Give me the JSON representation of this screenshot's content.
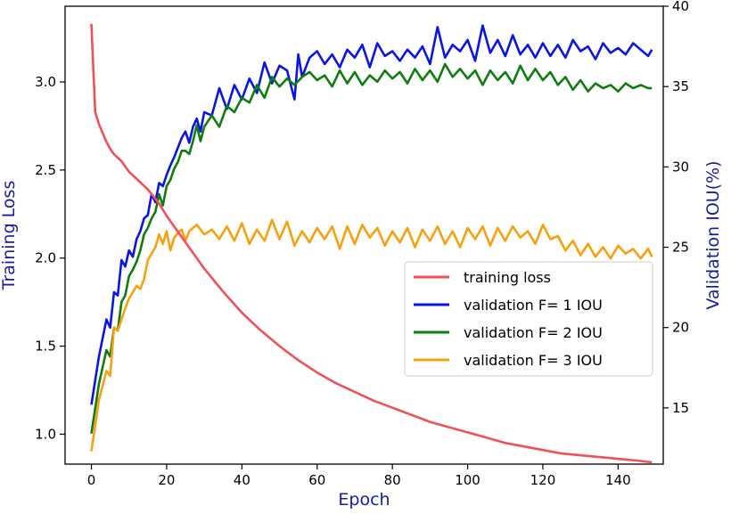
{
  "chart_data": {
    "type": "line",
    "title": "",
    "xlabel": "Epoch",
    "ylabel_left": "Training Loss",
    "ylabel_right": "Validation IOU(%)",
    "xlim": [
      -7,
      152
    ],
    "ylim_left": [
      0.83,
      3.43
    ],
    "ylim_right": [
      11.5,
      40
    ],
    "x_ticks": [
      0,
      20,
      40,
      60,
      80,
      100,
      120,
      140
    ],
    "y_left_ticks": [
      1.0,
      1.5,
      2.0,
      2.5,
      3.0
    ],
    "y_left_tick_labels": [
      "1.0",
      "1.5",
      "2.0",
      "2.5",
      "3.0"
    ],
    "y_right_ticks": [
      15,
      20,
      25,
      30,
      35,
      40
    ],
    "grid": false,
    "legend_position": "center-right",
    "axis_label_color": "#1a1aa6",
    "series": [
      {
        "name": "training loss",
        "axis": "left",
        "color": "#f0505a",
        "x": [
          0,
          1,
          2,
          3,
          4,
          5,
          6,
          8,
          10,
          12,
          15,
          18,
          20,
          25,
          30,
          35,
          40,
          45,
          50,
          55,
          60,
          65,
          70,
          75,
          80,
          85,
          90,
          95,
          100,
          105,
          110,
          115,
          120,
          125,
          130,
          135,
          140,
          145,
          149
        ],
        "values": [
          3.33,
          2.83,
          2.76,
          2.71,
          2.66,
          2.62,
          2.59,
          2.55,
          2.49,
          2.45,
          2.39,
          2.31,
          2.24,
          2.09,
          1.94,
          1.81,
          1.69,
          1.59,
          1.5,
          1.42,
          1.35,
          1.29,
          1.24,
          1.19,
          1.15,
          1.11,
          1.07,
          1.04,
          1.01,
          0.98,
          0.95,
          0.93,
          0.91,
          0.89,
          0.88,
          0.87,
          0.86,
          0.85,
          0.84
        ]
      },
      {
        "name": "validation F= 1 IOU",
        "axis": "right",
        "color": "#0a14e6",
        "x": [
          0,
          2,
          4,
          5,
          6,
          7,
          8,
          9,
          10,
          11,
          12,
          13,
          14,
          15,
          16,
          17,
          18,
          19,
          20,
          21,
          22,
          23,
          24,
          25,
          26,
          27,
          28,
          29,
          30,
          32,
          34,
          36,
          38,
          40,
          42,
          44,
          46,
          48,
          50,
          52,
          54,
          55,
          56,
          58,
          60,
          62,
          64,
          66,
          68,
          70,
          72,
          74,
          76,
          78,
          80,
          82,
          84,
          86,
          88,
          90,
          92,
          94,
          96,
          98,
          100,
          102,
          104,
          106,
          108,
          110,
          112,
          114,
          116,
          118,
          120,
          122,
          124,
          126,
          128,
          130,
          132,
          134,
          136,
          138,
          140,
          142,
          144,
          146,
          148,
          149
        ],
        "values": [
          15.2,
          18.2,
          20.5,
          20.0,
          22.2,
          22.0,
          24.2,
          23.8,
          24.8,
          24.4,
          25.5,
          26.0,
          26.8,
          27.0,
          28.3,
          27.8,
          29.0,
          28.8,
          29.5,
          30.1,
          30.6,
          31.2,
          31.8,
          32.2,
          31.5,
          32.5,
          33.0,
          32.2,
          33.4,
          33.2,
          34.9,
          33.6,
          35.1,
          34.2,
          35.5,
          34.6,
          36.5,
          35.2,
          36.3,
          36.0,
          34.2,
          37.0,
          35.6,
          36.8,
          37.2,
          36.4,
          37.0,
          36.2,
          37.3,
          36.8,
          37.6,
          36.2,
          37.7,
          36.9,
          37.2,
          36.6,
          37.3,
          36.8,
          37.5,
          36.4,
          38.7,
          36.8,
          37.6,
          37.2,
          37.9,
          36.6,
          38.8,
          37.1,
          37.9,
          36.9,
          38.2,
          37.0,
          37.6,
          36.8,
          37.7,
          36.9,
          37.6,
          36.8,
          37.9,
          37.2,
          37.5,
          36.7,
          37.7,
          37.1,
          37.4,
          37.0,
          37.7,
          37.3,
          36.9,
          37.3
        ]
      },
      {
        "name": "validation F= 2 IOU",
        "axis": "right",
        "color": "#0f7d0f",
        "x": [
          0,
          2,
          4,
          5,
          6,
          7,
          8,
          9,
          10,
          11,
          12,
          13,
          14,
          15,
          16,
          17,
          18,
          19,
          20,
          21,
          22,
          23,
          24,
          25,
          26,
          27,
          28,
          29,
          30,
          32,
          34,
          36,
          38,
          40,
          42,
          44,
          46,
          48,
          50,
          52,
          54,
          56,
          58,
          60,
          62,
          64,
          66,
          68,
          70,
          72,
          74,
          76,
          78,
          80,
          82,
          84,
          86,
          88,
          90,
          92,
          94,
          96,
          98,
          100,
          102,
          104,
          106,
          108,
          110,
          112,
          114,
          116,
          118,
          120,
          122,
          124,
          126,
          128,
          130,
          132,
          134,
          136,
          138,
          140,
          142,
          144,
          146,
          148,
          149
        ],
        "values": [
          13.4,
          16.5,
          18.6,
          18.2,
          20.0,
          19.8,
          21.6,
          22.0,
          23.2,
          23.6,
          24.1,
          24.8,
          25.8,
          26.2,
          26.8,
          27.2,
          28.3,
          27.6,
          28.8,
          29.2,
          29.9,
          30.3,
          31.0,
          31.0,
          30.8,
          31.6,
          32.6,
          31.6,
          32.5,
          33.2,
          32.5,
          33.8,
          33.4,
          34.3,
          34.0,
          35.1,
          34.3,
          35.6,
          35.0,
          35.5,
          35.1,
          35.6,
          35.9,
          35.4,
          35.7,
          35.0,
          36.0,
          35.2,
          35.9,
          35.1,
          35.7,
          35.3,
          36.0,
          35.5,
          35.9,
          35.2,
          36.1,
          35.4,
          36.0,
          35.3,
          36.4,
          35.6,
          36.1,
          35.5,
          36.0,
          35.1,
          36.0,
          35.4,
          35.9,
          35.2,
          36.3,
          35.4,
          36.1,
          35.4,
          35.9,
          35.1,
          35.6,
          34.8,
          35.4,
          34.7,
          35.2,
          34.9,
          35.1,
          34.7,
          35.2,
          34.9,
          35.1,
          34.9,
          34.9
        ]
      },
      {
        "name": "validation F= 3 IOU",
        "axis": "right",
        "color": "#f7a010",
        "x": [
          0,
          2,
          4,
          5,
          6,
          7,
          8,
          9,
          10,
          11,
          12,
          13,
          14,
          15,
          16,
          17,
          18,
          19,
          20,
          21,
          22,
          23,
          24,
          25,
          26,
          28,
          30,
          32,
          34,
          36,
          38,
          40,
          42,
          44,
          46,
          48,
          50,
          52,
          54,
          56,
          58,
          60,
          62,
          64,
          66,
          68,
          70,
          72,
          74,
          76,
          78,
          80,
          82,
          84,
          86,
          88,
          90,
          92,
          94,
          96,
          98,
          100,
          102,
          104,
          106,
          108,
          110,
          112,
          114,
          116,
          118,
          120,
          122,
          124,
          126,
          128,
          130,
          132,
          134,
          136,
          138,
          140,
          142,
          144,
          146,
          148,
          149
        ],
        "values": [
          12.3,
          15.5,
          17.3,
          17.0,
          20.0,
          19.8,
          20.5,
          21.2,
          21.8,
          22.2,
          22.6,
          22.4,
          23.0,
          24.2,
          24.6,
          25.0,
          25.8,
          25.2,
          26.0,
          24.8,
          25.6,
          25.9,
          26.1,
          25.4,
          26.0,
          26.4,
          25.8,
          26.1,
          25.5,
          26.3,
          25.4,
          26.5,
          25.2,
          26.1,
          25.4,
          26.7,
          25.5,
          26.6,
          25.1,
          26.0,
          25.3,
          26.2,
          25.5,
          26.3,
          24.9,
          26.3,
          25.2,
          26.4,
          25.6,
          26.2,
          25.1,
          26.0,
          25.3,
          26.2,
          25.0,
          26.1,
          25.4,
          26.3,
          25.2,
          26.0,
          25.0,
          26.2,
          25.5,
          26.3,
          25.1,
          26.2,
          25.4,
          26.3,
          25.6,
          26.0,
          25.2,
          26.4,
          25.5,
          25.7,
          24.8,
          25.4,
          24.5,
          25.2,
          24.4,
          25.0,
          24.3,
          25.1,
          24.6,
          24.9,
          24.3,
          24.9,
          24.4
        ]
      }
    ]
  }
}
